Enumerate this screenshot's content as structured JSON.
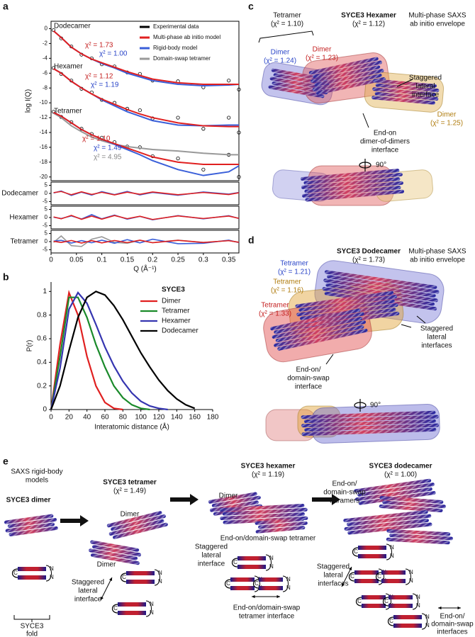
{
  "panel_labels": [
    "a",
    "b",
    "c",
    "d",
    "e"
  ],
  "chart_data": [
    {
      "type": "line",
      "ylabel": "log I(Q)",
      "xlabel": "Q (Å⁻¹)",
      "x": [
        0.005,
        0.02,
        0.04,
        0.06,
        0.08,
        0.1,
        0.125,
        0.15,
        0.175,
        0.2,
        0.25,
        0.3,
        0.35,
        0.37
      ],
      "xlim": [
        0,
        0.37
      ],
      "xticks": [
        0,
        0.05,
        0.1,
        0.15,
        0.2,
        0.25,
        0.3,
        0.35
      ],
      "ylim": [
        -20.5,
        1
      ],
      "yticks": [
        0,
        -2,
        -4,
        -6,
        -8,
        -10,
        -12,
        -14,
        -16,
        -18,
        -20
      ],
      "legend": "upper right",
      "series": [
        {
          "name": "Experimental data",
          "color": "#000000",
          "marker": "circle",
          "values": [
            [
              -0.2,
              -1.3,
              -2.4,
              -3.5,
              -4.0,
              -4.8,
              -5.1,
              -5.9,
              -6.1,
              -7.0,
              -7.1,
              -7.9,
              -7.0,
              -8.2
            ],
            [
              -5.3,
              -6.1,
              -7.0,
              -8.1,
              -8.6,
              -9.6,
              -10.0,
              -10.8,
              -11.0,
              -12.1,
              -12.0,
              -13.5,
              -12.0,
              -14.0
            ],
            [
              -11.2,
              -11.9,
              -12.6,
              -13.5,
              -14.2,
              -14.7,
              -15.3,
              -15.9,
              -16.0,
              -17.2,
              -17.5,
              -19.0,
              -17.0,
              -20.0
            ]
          ]
        },
        {
          "name": "Domain-swap tetramer",
          "color": "#999999",
          "marker": "line",
          "values": [
            [
              -11.4,
              -12.0,
              -13.1,
              -13.9,
              -14.6,
              -15.1,
              -15.6,
              -15.9,
              -16.1,
              -16.3,
              -16.5,
              -16.8,
              -17.0,
              -17.0
            ]
          ]
        },
        {
          "name": "Rigid-body model",
          "color": "#3a5fd9",
          "marker": "line",
          "values": [
            [
              -0.3,
              -1.2,
              -2.5,
              -3.4,
              -4.1,
              -4.7,
              -5.3,
              -6.0,
              -6.5,
              -7.0,
              -7.5,
              -7.7,
              -7.6,
              -7.5
            ],
            [
              -5.4,
              -6.0,
              -7.1,
              -8.0,
              -8.8,
              -9.6,
              -10.4,
              -11.2,
              -11.8,
              -12.4,
              -13.0,
              -13.1,
              -13.0,
              -13.0
            ],
            [
              -11.3,
              -11.8,
              -12.7,
              -13.6,
              -14.3,
              -14.9,
              -15.6,
              -16.3,
              -17.0,
              -17.8,
              -19.0,
              -19.8,
              -19.3,
              -18.5
            ]
          ]
        },
        {
          "name": "Multi-phase ab initio model",
          "color": "#e02020",
          "marker": "line",
          "values": [
            [
              -0.3,
              -1.2,
              -2.5,
              -3.4,
              -4.1,
              -4.6,
              -5.2,
              -5.8,
              -6.3,
              -6.8,
              -7.3,
              -7.5,
              -7.5,
              -7.5
            ],
            [
              -5.4,
              -6.0,
              -7.1,
              -8.0,
              -8.8,
              -9.5,
              -10.2,
              -10.9,
              -11.5,
              -12.0,
              -12.7,
              -13.1,
              -13.2,
              -13.2
            ],
            [
              -11.3,
              -11.8,
              -12.7,
              -13.6,
              -14.3,
              -14.9,
              -15.5,
              -16.1,
              -16.7,
              -17.3,
              -18.0,
              -18.3,
              -18.3,
              -18.3
            ]
          ]
        }
      ],
      "annotations": [
        "Dodecamer",
        "χ² = 1.73",
        "χ² = 1.00",
        "Hexamer",
        "χ² = 1.12",
        "χ² = 1.19",
        "Tetramer",
        "χ² = 1.10",
        "χ² = 1.49",
        "χ² = 4.95"
      ],
      "residuals": {
        "ylim": [
          -7,
          7
        ],
        "yticks": [
          5,
          0,
          -5
        ],
        "panels": [
          {
            "label": "Dodecamer",
            "series": [
              {
                "color": "#3a5fd9",
                "values": [
                  0.3,
                  1.5,
                  -1.2,
                  0.8,
                  -1.0,
                  1.1,
                  -0.7,
                  1.2,
                  -0.9,
                  0.6,
                  -1.1,
                  0.9,
                  -0.4,
                  0.6
                ]
              },
              {
                "color": "#e02020",
                "values": [
                  0.5,
                  1.2,
                  -0.8,
                  1.0,
                  -0.6,
                  0.7,
                  -0.9,
                  0.8,
                  -0.5,
                  0.9,
                  -0.8,
                  0.6,
                  -0.7,
                  0.4
                ]
              }
            ]
          },
          {
            "label": "Hexamer",
            "series": [
              {
                "color": "#3a5fd9",
                "values": [
                  0.2,
                  -0.6,
                  1.0,
                  -0.9,
                  1.8,
                  -0.8,
                  1.5,
                  -1.0,
                  0.7,
                  -1.4,
                  1.2,
                  -0.8,
                  1.1,
                  -0.6
                ]
              },
              {
                "color": "#e02020",
                "values": [
                  0.4,
                  -0.8,
                  1.3,
                  -1.1,
                  0.9,
                  -1.0,
                  1.2,
                  -0.7,
                  0.8,
                  -1.2,
                  1.0,
                  -0.6,
                  0.9,
                  -0.5
                ]
              }
            ]
          },
          {
            "label": "Tetramer",
            "series": [
              {
                "color": "#999999",
                "values": [
                  -0.5,
                  3.5,
                  -2.5,
                  -3.0,
                  1.5,
                  3.0,
                  -0.5,
                  -1.0,
                  0.8,
                  -0.6,
                  0.9,
                  -0.5,
                  0.6,
                  -0.4
                ]
              },
              {
                "color": "#3a5fd9",
                "values": [
                  0.3,
                  0.8,
                  -0.9,
                  0.6,
                  -0.7,
                  0.9,
                  -1.0,
                  1.2,
                  -0.8,
                  1.5,
                  -1.3,
                  -1.0,
                  0.9,
                  -0.6
                ]
              },
              {
                "color": "#e02020",
                "values": [
                  0.2,
                  -0.5,
                  0.7,
                  -0.9,
                  0.6,
                  -0.8,
                  0.7,
                  -0.6,
                  0.9,
                  -0.7,
                  0.8,
                  -0.5,
                  0.6,
                  -0.4
                ]
              }
            ]
          }
        ]
      }
    },
    {
      "type": "line",
      "ylabel": "P(r)",
      "xlabel": "Interatomic distance (Å)",
      "x": [
        0,
        10,
        20,
        30,
        40,
        50,
        60,
        70,
        80,
        90,
        100,
        110,
        120,
        130,
        140,
        150,
        160
      ],
      "xlim": [
        0,
        180
      ],
      "xticks": [
        0,
        20,
        40,
        60,
        80,
        100,
        120,
        140,
        160,
        180
      ],
      "ylim": [
        0,
        1.08
      ],
      "yticks": [
        0,
        0.2,
        0.4,
        0.6,
        0.8,
        1
      ],
      "legend": "upper right",
      "legend_title": "SYCE3",
      "series": [
        {
          "name": "Dimer",
          "color": "#e02020",
          "values": [
            0,
            0.55,
            0.99,
            0.8,
            0.45,
            0.2,
            0.06,
            0.01,
            0,
            null,
            null,
            null,
            null,
            null,
            null,
            null,
            null
          ]
        },
        {
          "name": "Tetramer",
          "color": "#1a8a2a",
          "values": [
            0,
            0.45,
            0.95,
            0.95,
            0.78,
            0.55,
            0.36,
            0.2,
            0.1,
            0.04,
            0.01,
            0,
            null,
            null,
            null,
            null,
            null
          ]
        },
        {
          "name": "Hexamer",
          "color": "#3535b0",
          "values": [
            0,
            0.35,
            0.85,
            0.99,
            0.9,
            0.72,
            0.53,
            0.37,
            0.24,
            0.14,
            0.07,
            0.03,
            0.01,
            0,
            null,
            null,
            null
          ]
        },
        {
          "name": "Dodecamer",
          "color": "#000000",
          "values": [
            0,
            0.2,
            0.5,
            0.78,
            0.95,
            1.0,
            0.97,
            0.88,
            0.76,
            0.62,
            0.48,
            0.36,
            0.25,
            0.16,
            0.09,
            0.04,
            0.01
          ]
        }
      ]
    }
  ],
  "panel_c": {
    "tetramer_label": "Tetramer",
    "tetramer_chi": "(χ² = 1.10)",
    "title": "SYCE3 Hexamer",
    "title_chi": "(χ² = 1.12)",
    "envelope_note": [
      "Multi-phase SAXS",
      "ab initio envelope"
    ],
    "dimer_blue": [
      "Dimer",
      "(χ² = 1.24)"
    ],
    "dimer_red": [
      "Dimer",
      "(χ² = 1.23)"
    ],
    "staggered": [
      "Staggered",
      "lateral",
      "interface"
    ],
    "end_on": [
      "End-on",
      "dimer-of-dimers",
      "interface"
    ],
    "dimer_gold": [
      "Dimer",
      "(χ² = 1.25)"
    ],
    "rotation": "90°"
  },
  "panel_d": {
    "title": "SYCE3 Dodecamer",
    "title_chi": "(χ² = 1.73)",
    "envelope_note": [
      "Multi-phase SAXS",
      "ab initio envelope"
    ],
    "tetramer_blue": [
      "Tetramer",
      "(χ² = 1.21)"
    ],
    "tetramer_gold": [
      "Tetramer",
      "(χ² = 1.16)"
    ],
    "tetramer_red": [
      "Tetramer",
      "(χ² = 1.33)"
    ],
    "staggered": [
      "Staggered",
      "lateral",
      "interfaces"
    ],
    "end_on": [
      "End-on/",
      "domain-swap",
      "interface"
    ],
    "rotation": "90°"
  },
  "panel_e": {
    "intro": [
      "SAXS rigid-body",
      "models"
    ],
    "dimer_title": "SYCE3 dimer",
    "fold": [
      "SYCE3",
      "fold"
    ],
    "tetramer_title": "SYCE3 tetramer",
    "tetramer_chi": "(χ² = 1.49)",
    "tetramer_dimers": [
      "Dimer",
      "Dimer"
    ],
    "tetramer_interface": [
      "Staggered",
      "lateral",
      "interface"
    ],
    "hexamer_title": "SYCE3 hexamer",
    "hexamer_chi": "(χ² = 1.19)",
    "hexamer_dimer": "Dimer",
    "hexamer_tetramer": "End-on/domain-swap tetramer",
    "hexamer_staggered": [
      "Staggered",
      "lateral",
      "interface"
    ],
    "hexamer_end_on": [
      "End-on/domain-swap",
      "tetramer interface"
    ],
    "dodecamer_title": "SYCE3 dodecamer",
    "dodecamer_chi": "(χ² = 1.00)",
    "dodecamer_tetramers": [
      "End-on/",
      "domain-swap",
      "tetramers"
    ],
    "dodecamer_staggered": [
      "Staggered",
      "lateral",
      "interfaces"
    ],
    "dodecamer_end_on": [
      "End-on/",
      "domain-swap",
      "interfaces"
    ],
    "terminus_labels": [
      "N",
      "C"
    ]
  }
}
